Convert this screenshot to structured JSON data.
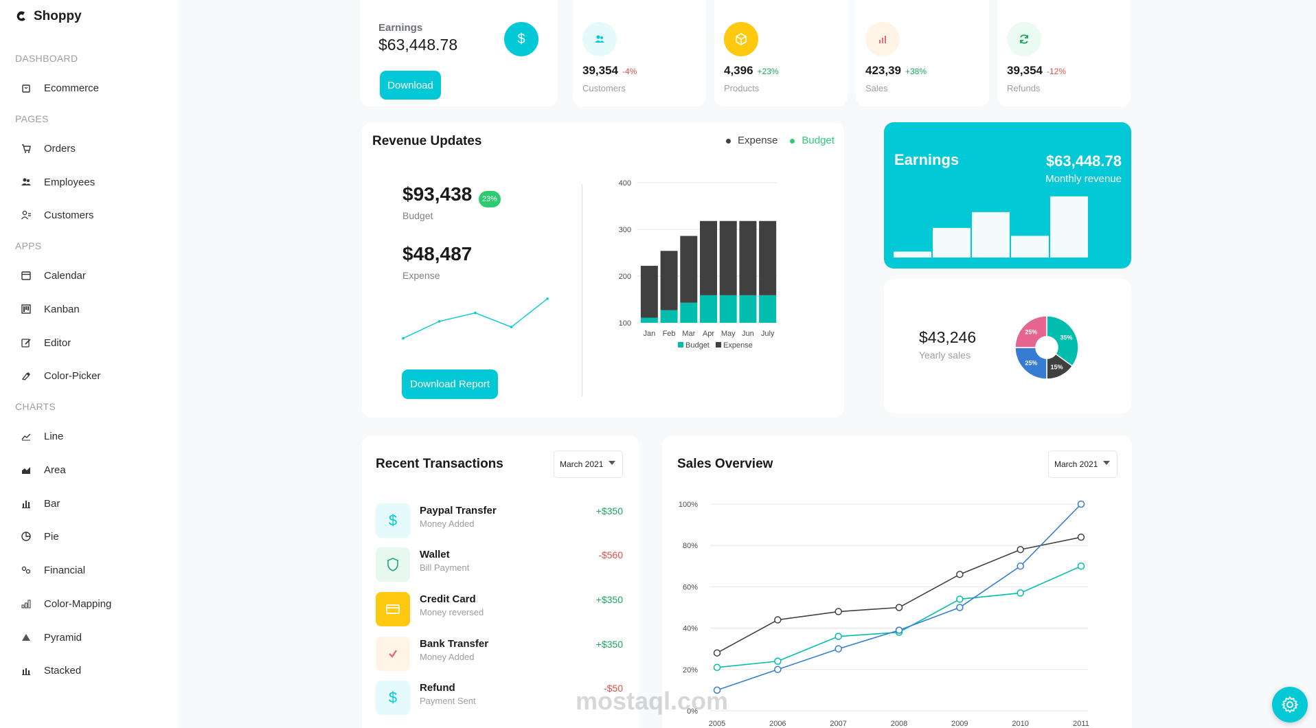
{
  "brand": {
    "name": "Shoppy"
  },
  "sidebar": {
    "sections": [
      {
        "title": "DASHBOARD",
        "items": [
          {
            "label": "Ecommerce",
            "icon": "bag-icon"
          }
        ]
      },
      {
        "title": "PAGES",
        "items": [
          {
            "label": "Orders",
            "icon": "cart-icon"
          },
          {
            "label": "Employees",
            "icon": "people-icon"
          },
          {
            "label": "Customers",
            "icon": "contacts-icon"
          }
        ]
      },
      {
        "title": "APPS",
        "items": [
          {
            "label": "Calendar",
            "icon": "calendar-icon"
          },
          {
            "label": "Kanban",
            "icon": "kanban-icon"
          },
          {
            "label": "Editor",
            "icon": "edit-icon"
          },
          {
            "label": "Color-Picker",
            "icon": "color-picker-icon"
          }
        ]
      },
      {
        "title": "CHARTS",
        "items": [
          {
            "label": "Line",
            "icon": "line-chart-icon"
          },
          {
            "label": "Area",
            "icon": "area-chart-icon"
          },
          {
            "label": "Bar",
            "icon": "bar-chart-icon"
          },
          {
            "label": "Pie",
            "icon": "pie-chart-icon"
          },
          {
            "label": "Financial",
            "icon": "financial-icon"
          },
          {
            "label": "Color-Mapping",
            "icon": "color-mapping-icon"
          },
          {
            "label": "Pyramid",
            "icon": "pyramid-icon"
          },
          {
            "label": "Stacked",
            "icon": "stacked-icon"
          }
        ]
      }
    ]
  },
  "earnings_card": {
    "label": "Earnings",
    "value": "$63,448.78",
    "button": "Download",
    "icon": "dollar-icon"
  },
  "stats": [
    {
      "value": "39,354",
      "change": "-4%",
      "change_color": "#e14d4d",
      "label": "Customers",
      "icon": "customers-icon",
      "icon_bg": "#e5fafb",
      "icon_color": "#03c9d7"
    },
    {
      "value": "4,396",
      "change": "+23%",
      "change_color": "#1aa65c",
      "label": "Products",
      "icon": "box-icon",
      "icon_bg": "#fec90f",
      "icon_color": "#ffffff"
    },
    {
      "value": "423,39",
      "change": "+38%",
      "change_color": "#1aa65c",
      "label": "Sales",
      "icon": "bar-chart-icon",
      "icon_bg": "#fff4e5",
      "icon_color": "#e46a76"
    },
    {
      "value": "39,354",
      "change": "-12%",
      "change_color": "#e14d4d",
      "label": "Refunds",
      "icon": "refresh-icon",
      "icon_bg": "#ebfaf2",
      "icon_color": "#1aa65c"
    }
  ],
  "revenue": {
    "title": "Revenue Updates",
    "legend": [
      {
        "label": "Expense",
        "color": "#404041"
      },
      {
        "label": "Budget",
        "color": "#2ecc71"
      }
    ],
    "budget_value": "$93,438",
    "budget_badge": "23%",
    "budget_label": "Budget",
    "expense_value": "$48,487",
    "expense_label": "Expense",
    "button": "Download Report"
  },
  "chart_data": [
    {
      "type": "bar",
      "id": "revenue-stacked",
      "categories": [
        "Jan",
        "Feb",
        "Mar",
        "Apr",
        "May",
        "Jun",
        "July"
      ],
      "series": [
        {
          "name": "Budget",
          "color": "#00bdae",
          "values": [
            111,
            127,
            143,
            159,
            159,
            159,
            159
          ]
        },
        {
          "name": "Expense",
          "color": "#404041",
          "values": [
            111,
            127,
            143,
            159,
            159,
            159,
            159
          ]
        }
      ],
      "yticks": [
        "100",
        "200",
        "300",
        "400"
      ],
      "ylim": [
        100,
        400
      ],
      "legend": [
        "Budget",
        "Expense"
      ]
    },
    {
      "type": "line",
      "id": "sales-overview",
      "title": "Sales Overview",
      "x": [
        2005,
        2006,
        2007,
        2008,
        2009,
        2010,
        2011
      ],
      "yticks": [
        "0%",
        "20%",
        "40%",
        "60%",
        "80%",
        "100%"
      ],
      "ylim": [
        0,
        100
      ],
      "series": [
        {
          "color": "#404041",
          "values": [
            28,
            44,
            48,
            50,
            66,
            78,
            84
          ]
        },
        {
          "color": "#00bdae",
          "values": [
            21,
            24,
            36,
            38,
            54,
            57,
            70
          ]
        },
        {
          "color": "#357cd2",
          "values": [
            10,
            20,
            30,
            39,
            50,
            70,
            100
          ]
        }
      ]
    },
    {
      "type": "line",
      "id": "revenue-sparkline",
      "x": [
        1,
        2,
        3,
        4,
        5
      ],
      "series": [
        {
          "color": "#03c9d7",
          "values": [
            1.5,
            4.5,
            6,
            3.5,
            8.5
          ]
        }
      ]
    },
    {
      "type": "bar",
      "id": "earnings-bars",
      "categories": [
        "1",
        "2",
        "3",
        "4",
        "5"
      ],
      "series": [
        {
          "color": "#ffffff",
          "values": [
            1.5,
            7.5,
            11.5,
            5.5,
            15.5
          ]
        }
      ],
      "ylim": [
        0,
        16
      ]
    },
    {
      "type": "pie",
      "id": "yearly-pie",
      "values": [
        35,
        15,
        25,
        25
      ],
      "labels": [
        "35%",
        "15%",
        "25%",
        "25%"
      ],
      "colors": [
        "#00bdae",
        "#404041",
        "#357cd2",
        "#e56590"
      ]
    }
  ],
  "earnings_panel": {
    "title": "Earnings",
    "value": "$63,448.78",
    "subtitle": "Monthly revenue",
    "bg": "#03c9d7"
  },
  "yearly": {
    "value": "$43,246",
    "label": "Yearly sales"
  },
  "transactions": {
    "title": "Recent Transactions",
    "dropdown": "March 2021",
    "items": [
      {
        "title": "Paypal Transfer",
        "sub": "Money Added",
        "amount": "+$350",
        "amount_color": "#1aa65c",
        "icon": "dollar-icon",
        "icon_bg": "#e5fafb",
        "icon_color": "#03c9d7"
      },
      {
        "title": "Wallet",
        "sub": "Bill Payment",
        "amount": "-$560",
        "amount_color": "#e14d4d",
        "icon": "shield-icon",
        "icon_bg": "#e6f8f0",
        "icon_color": "#2ea878"
      },
      {
        "title": "Credit Card",
        "sub": "Money reversed",
        "amount": "+$350",
        "amount_color": "#1aa65c",
        "icon": "card-icon",
        "icon_bg": "#fec90f",
        "icon_color": "#ffffff"
      },
      {
        "title": "Bank Transfer",
        "sub": "Money Added",
        "amount": "+$350",
        "amount_color": "#1aa65c",
        "icon": "check-icon",
        "icon_bg": "#fff4e5",
        "icon_color": "#e46a76"
      },
      {
        "title": "Refund",
        "sub": "Payment Sent",
        "amount": "-$50",
        "amount_color": "#e14d4d",
        "icon": "dollar-icon",
        "icon_bg": "#e5fafb",
        "icon_color": "#03c9d7"
      }
    ]
  },
  "sales": {
    "title": "Sales Overview",
    "dropdown": "March 2021"
  },
  "settings": {
    "icon": "gear-icon"
  },
  "watermark": {
    "text": "mostaql.com"
  }
}
